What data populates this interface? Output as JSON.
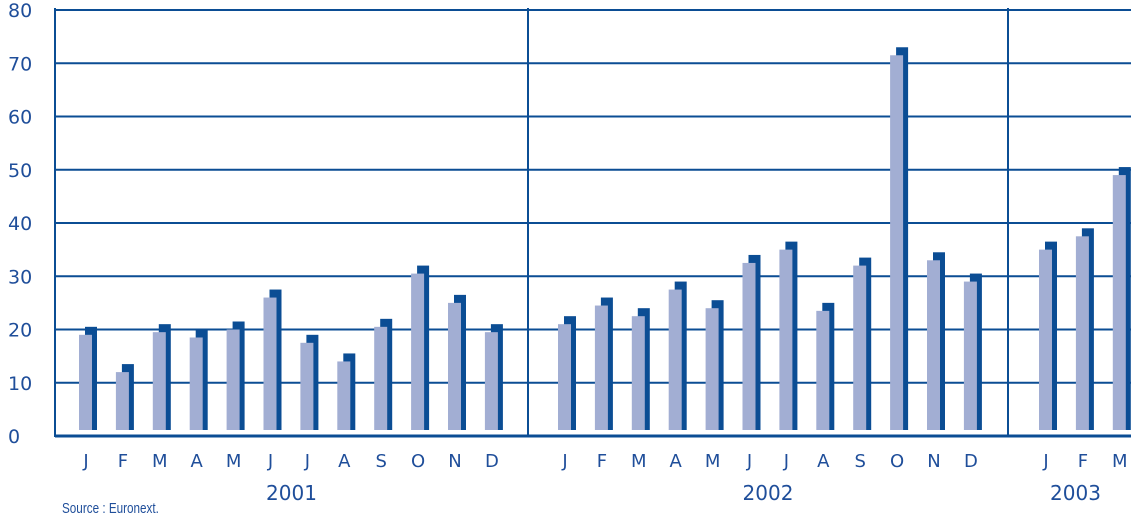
{
  "chart_data": {
    "type": "bar",
    "ylim": [
      0,
      80
    ],
    "y_ticks": [
      "0",
      "10",
      "20",
      "30",
      "40",
      "50",
      "60",
      "70",
      "80"
    ],
    "grid": true,
    "groups": [
      {
        "year": "2001",
        "months": [
          "J",
          "F",
          "M",
          "A",
          "M",
          "J",
          "J",
          "A",
          "S",
          "O",
          "N",
          "D"
        ]
      },
      {
        "year": "2002",
        "months": [
          "J",
          "F",
          "M",
          "A",
          "M",
          "J",
          "J",
          "A",
          "S",
          "O",
          "N",
          "D"
        ]
      },
      {
        "year": "2003",
        "months": [
          "J",
          "F",
          "M"
        ]
      }
    ],
    "values": [
      19,
      12,
      19.5,
      18.5,
      20,
      26,
      17.5,
      14,
      20.5,
      30.5,
      25,
      19.5,
      21,
      24.5,
      22.5,
      27.5,
      24,
      32.5,
      35,
      23.5,
      32,
      71.5,
      33,
      29,
      35,
      37.5,
      49
    ],
    "colors": {
      "bar": "#a2aed3",
      "shadow": "#0b4d94",
      "axis": "#0b4d94"
    }
  },
  "source": "Source : Euronext."
}
